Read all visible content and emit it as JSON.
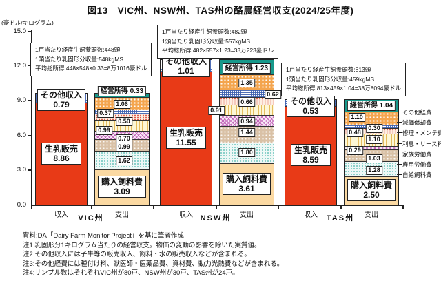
{
  "title": "図13　VIC州、NSW州、TAS州の酪農経営収支(2024/25年度)",
  "chart_data": {
    "type": "bar",
    "stacked": true,
    "unit_label": "(豪ドル/キログラム)",
    "ylim": [
      0,
      15
    ],
    "y_ticks": [
      0,
      3,
      6,
      9,
      12,
      15
    ],
    "income_label": "収入",
    "spend_label": "支出",
    "series_labels": {
      "milk_sales": "生乳販売",
      "other_income": "その他収入",
      "operating_income": "経営所得",
      "purchased_feed": "購入飼料費"
    },
    "legend": [
      "その他経費",
      "減価償却費",
      "修理・メンテ費",
      "利息・リース料",
      "家族労働費",
      "雇用労働費",
      "自給飼料費"
    ],
    "groups": [
      {
        "state": "VIC州",
        "annotation": [
          "1戸当たり経産牛飼養頭数:448頭",
          "1頭当たり乳固形分収量:548kgMS",
          "平均総所得 448×548×0.33=8万1016豪ドル"
        ],
        "income": {
          "milk_sales": 8.86,
          "other_income": 0.79
        },
        "operating_income": 0.33,
        "expenses": [
          1.06,
          0.37,
          0.5,
          0.99,
          0.7,
          0.99,
          1.62
        ],
        "purchased_feed": 3.09
      },
      {
        "state": "NSW州",
        "annotation": [
          "1戸当たり経産牛飼養頭数:482頭",
          "1頭当たり乳固形分収量:557kgMS",
          "平均総所得 482×557×1.23=33万223豪ドル"
        ],
        "income": {
          "milk_sales": 11.55,
          "other_income": 1.01
        },
        "operating_income": 1.23,
        "expenses": [
          1.35,
          0.62,
          0.66,
          0.91,
          0.94,
          1.44,
          1.8
        ],
        "purchased_feed": 3.61
      },
      {
        "state": "TAS州",
        "annotation": [
          "1戸当たり経産牛飼養頭数:813頭",
          "1頭当たり乳固形分収量:459kgMS",
          "平均総所得 813×459×1.04=38万8094豪ドル"
        ],
        "income": {
          "milk_sales": 8.59,
          "other_income": 0.53
        },
        "operating_income": 1.04,
        "expenses": [
          1.1,
          0.3,
          0.48,
          1.1,
          0.29,
          1.03,
          1.28
        ],
        "purchased_feed": 2.5
      }
    ],
    "layout_hints": {
      "value_label_offsets": [
        [
          [
            0,
            2
          ],
          [
            -24,
            3
          ],
          [
            3,
            8
          ],
          [
            -26,
            8
          ],
          [
            3,
            6
          ],
          [
            3,
            4
          ],
          [
            3,
            2
          ]
        ],
        [
          [
            0,
            3
          ],
          [
            38,
            3
          ],
          [
            0,
            3
          ],
          [
            -44,
            2
          ],
          [
            0,
            2
          ],
          [
            0,
            -2
          ],
          [
            0,
            0
          ]
        ],
        [
          [
            -21,
            0
          ],
          [
            4,
            4
          ],
          [
            -24,
            4
          ],
          [
            4,
            0
          ],
          [
            -24,
            5
          ],
          [
            4,
            6
          ],
          [
            4,
            3
          ]
        ]
      ],
      "legend_position": "right"
    },
    "colors": {
      "milk_sales": "#e83a17",
      "purchased_feed": "#fbd9a2",
      "operating_income": "#17998b",
      "other_costs": "#f4a54e",
      "axis": "#222222"
    }
  },
  "notes": [
    "資料:DA「Dairy Farm Monitor Project」を基に筆者作成",
    "注1:乳固形分1キログラム当たりの経営収支。物価の変動の影響を除いた実質値。",
    "注2:その他収入には子牛等の販売収入、飼料・水の販売収入などが含まれる。",
    "注3:その他経費には種付け料、獣医師・医薬品費、資材費、動力光熱費などが含まれる。",
    "注4:サンプル数はそれぞれVIC州が80戸、NSW州が30戸、TAS州が24戸。"
  ]
}
